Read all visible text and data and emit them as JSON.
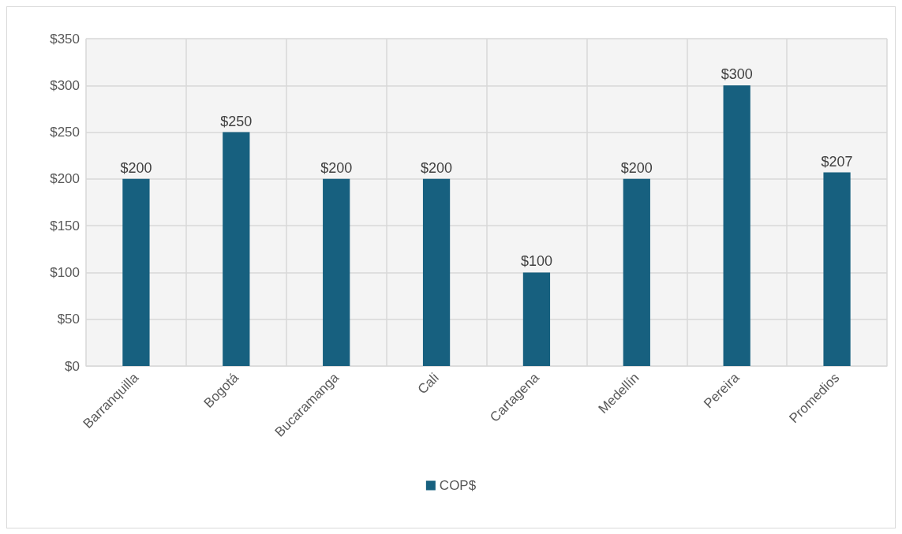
{
  "chart_data": {
    "type": "bar",
    "categories": [
      "Barranquilla",
      "Bogotá",
      "Bucaramanga",
      "Cali",
      "Cartagena",
      "Medellín",
      "Pereira",
      "Promedios"
    ],
    "series": [
      {
        "name": "COP$",
        "color": "#17607f",
        "values": [
          200,
          250,
          200,
          200,
          100,
          200,
          300,
          207
        ],
        "value_labels": [
          "$200",
          "$250",
          "$200",
          "$200",
          "$100",
          "$200",
          "$300",
          "$207"
        ]
      }
    ],
    "ylim": [
      0,
      350
    ],
    "yticks": [
      {
        "value": 0,
        "label": "$0"
      },
      {
        "value": 50,
        "label": "$50"
      },
      {
        "value": 100,
        "label": "$100"
      },
      {
        "value": 150,
        "label": "$150"
      },
      {
        "value": 200,
        "label": "$200"
      },
      {
        "value": 250,
        "label": "$250"
      },
      {
        "value": 300,
        "label": "$300"
      },
      {
        "value": 350,
        "label": "$350"
      }
    ],
    "grid": true,
    "legend": "bottom"
  }
}
